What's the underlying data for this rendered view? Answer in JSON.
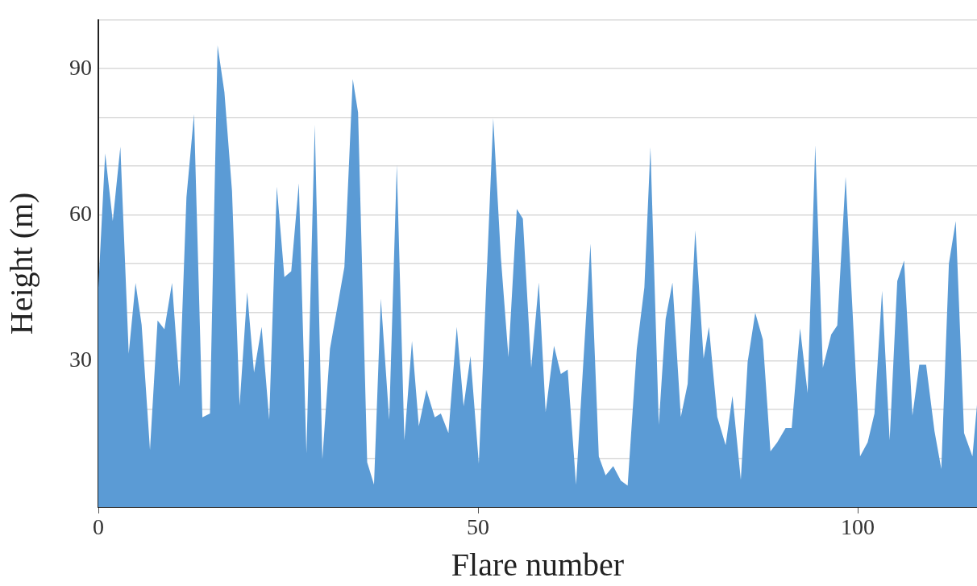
{
  "chart_data": {
    "type": "area",
    "xlabel": "Flare number",
    "ylabel": "Height (m)",
    "xlim": [
      0,
      115.7
    ],
    "ylim": [
      0,
      100
    ],
    "xticks": [
      0,
      50,
      100
    ],
    "yticks": [
      {
        "value": 10,
        "label": null
      },
      {
        "value": 20,
        "label": null
      },
      30,
      {
        "value": 40,
        "label": null
      },
      {
        "value": 50,
        "label": null
      },
      60,
      {
        "value": 70,
        "label": null
      },
      {
        "value": 80,
        "label": null
      },
      90,
      {
        "value": 100,
        "label": null
      }
    ],
    "grid": "y",
    "legend": false,
    "marker": "none",
    "series": [
      {
        "color": "#5b9bd5",
        "x": [
          0,
          0.9,
          1.9,
          2.9,
          4,
          4.9,
          5.7,
          6.8,
          7.8,
          8.7,
          9.7,
          10.7,
          11.6,
          12.6,
          13.7,
          14.7,
          15.7,
          16.6,
          17.6,
          18.6,
          19.6,
          20.5,
          21.5,
          22.5,
          23.5,
          24.5,
          25.4,
          26.4,
          27.4,
          28.5,
          29.5,
          30.5,
          32.4,
          33.5,
          34.2,
          35.4,
          36.3,
          37.2,
          38.3,
          39.3,
          40.3,
          41.3,
          42.2,
          43.2,
          44.3,
          45.1,
          46.1,
          47.2,
          48.1,
          49,
          50.1,
          52,
          53,
          54,
          55.1,
          55.9,
          57,
          58,
          58.9,
          60,
          60.9,
          61.8,
          62.9,
          64.8,
          65.9,
          66.8,
          67.8,
          68.8,
          69.7,
          70.9,
          71.9,
          72.7,
          73.8,
          74.7,
          75.6,
          76.7,
          77.6,
          78.6,
          79.7,
          80.4,
          81.5,
          82.6,
          83.5,
          84.6,
          85.5,
          86.5,
          87.5,
          88.5,
          89.4,
          90.5,
          91.3,
          92.4,
          93.4,
          94.4,
          95.4,
          96.5,
          97.3,
          98.4,
          100.3,
          101.3,
          102.2,
          103.2,
          104.2,
          105.2,
          106.1,
          107.2,
          108.1,
          109,
          110.1,
          111,
          112,
          112.9,
          114,
          115.1,
          115.7
        ],
        "values": [
          45,
          72.6,
          58.7,
          74,
          31.5,
          46,
          37.4,
          11.7,
          38.3,
          36.5,
          46,
          24.7,
          63.6,
          80.7,
          18.4,
          19.2,
          94.8,
          85.2,
          64.9,
          20.8,
          44.1,
          27.6,
          37,
          17.9,
          65.8,
          47.2,
          48.4,
          66.5,
          11,
          78.5,
          9.8,
          32.5,
          49.3,
          87.9,
          81,
          9.2,
          4.6,
          42.8,
          17.9,
          70.3,
          13.7,
          34.1,
          16.6,
          24.1,
          18.4,
          19.2,
          15.2,
          37,
          20.7,
          31,
          8.9,
          79.8,
          51.3,
          30.8,
          61.2,
          59.2,
          28.6,
          46.1,
          19.5,
          33.1,
          27.3,
          28.2,
          4.6,
          54.1,
          10.4,
          6.5,
          8.4,
          5.4,
          4.4,
          32.5,
          45.1,
          73.9,
          16.9,
          38.6,
          46.1,
          18.5,
          25.3,
          56.8,
          30.5,
          37,
          18.5,
          12.7,
          22.8,
          5.6,
          29.8,
          39.9,
          34.4,
          11.4,
          13.3,
          16.2,
          16.2,
          36.7,
          23.4,
          74.3,
          28.6,
          35.4,
          37.3,
          67.8,
          10.4,
          13.3,
          19.2,
          44.4,
          13.7,
          46.4,
          50.6,
          18.8,
          29.2,
          29.2,
          15.6,
          7.8,
          50,
          58.7,
          15.2,
          10.4,
          21
        ]
      }
    ]
  }
}
